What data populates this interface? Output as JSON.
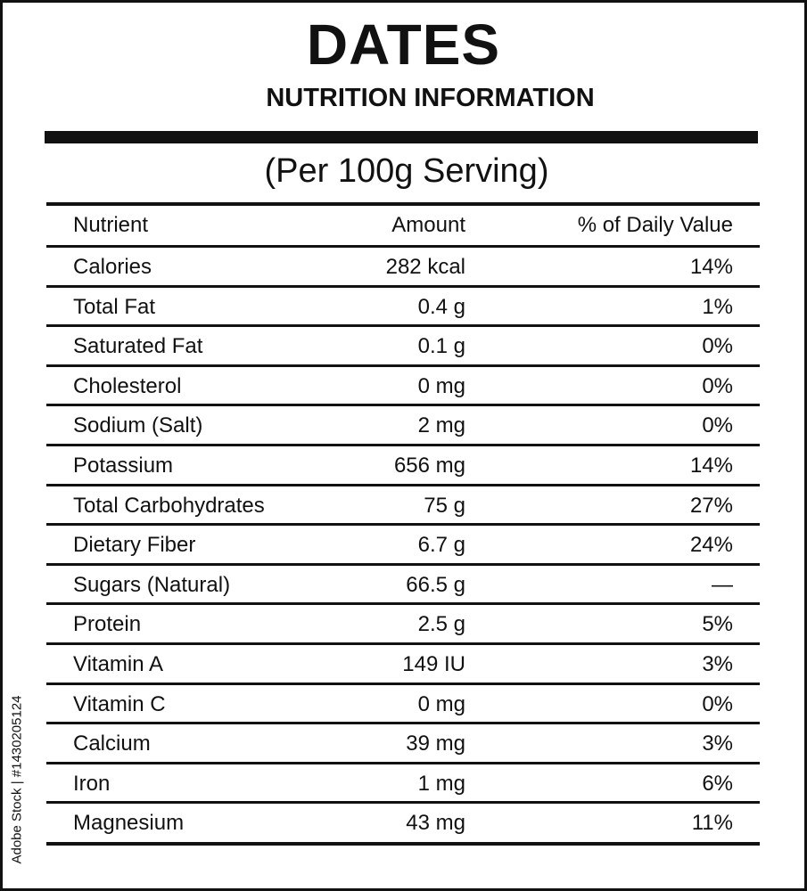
{
  "label": {
    "title": "DATES",
    "subtitle": "NUTRITION INFORMATION",
    "serving": "(Per 100g Serving)"
  },
  "table": {
    "headers": {
      "nutrient": "Nutrient",
      "amount": "Amount",
      "daily_value": "% of Daily Value"
    },
    "rows": [
      {
        "nutrient": "Calories",
        "amount": "282 kcal",
        "daily_value": "14%"
      },
      {
        "nutrient": "Total Fat",
        "amount": "0.4 g",
        "daily_value": "1%"
      },
      {
        "nutrient": "Saturated Fat",
        "amount": "0.1 g",
        "daily_value": "0%"
      },
      {
        "nutrient": "Cholesterol",
        "amount": "0 mg",
        "daily_value": "0%"
      },
      {
        "nutrient": "Sodium (Salt)",
        "amount": "2 mg",
        "daily_value": "0%"
      },
      {
        "nutrient": "Potassium",
        "amount": "656 mg",
        "daily_value": "14%"
      },
      {
        "nutrient": "Total Carbohydrates",
        "amount": "75 g",
        "daily_value": "27%"
      },
      {
        "nutrient": "Dietary Fiber",
        "amount": "6.7 g",
        "daily_value": "24%"
      },
      {
        "nutrient": "Sugars (Natural)",
        "amount": "66.5 g",
        "daily_value": "—"
      },
      {
        "nutrient": "Protein",
        "amount": "2.5 g",
        "daily_value": "5%"
      },
      {
        "nutrient": "Vitamin A",
        "amount": "149 IU",
        "daily_value": "3%"
      },
      {
        "nutrient": "Vitamin C",
        "amount": "0 mg",
        "daily_value": "0%"
      },
      {
        "nutrient": "Calcium",
        "amount": "39 mg",
        "daily_value": "3%"
      },
      {
        "nutrient": "Iron",
        "amount": "1 mg",
        "daily_value": "6%"
      },
      {
        "nutrient": "Magnesium",
        "amount": "43 mg",
        "daily_value": "11%"
      }
    ]
  },
  "watermark": {
    "text": "Adobe Stock | #1430205124"
  }
}
